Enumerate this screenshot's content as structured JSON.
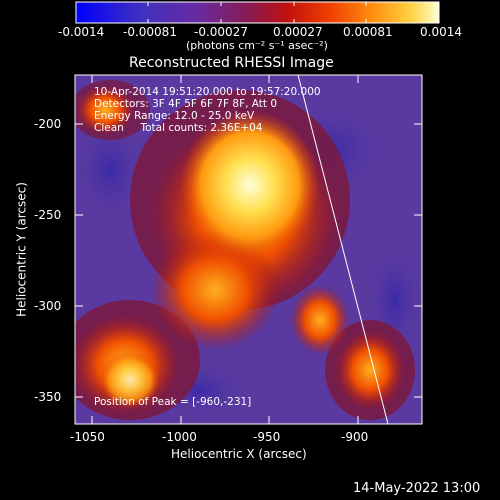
{
  "colorbar": {
    "ticks": [
      "-0.0014",
      "-0.00081",
      "-0.00027",
      "0.00027",
      "0.00081",
      "0.0014"
    ],
    "units": "(photons cm⁻² s⁻¹ asec⁻²)"
  },
  "title": "Reconstructed RHESSI Image",
  "info": {
    "time_range": "10-Apr-2014 19:51:20.000 to 19:57:20.000",
    "detectors": "Detectors: 3F 4F 5F 6F 7F 8F, Att 0",
    "energy": "Energy Range: 12.0 - 25.0 keV",
    "clean": "Clean     Total counts: 2.36E+04",
    "peak": "Position of Peak = [-960,-231]"
  },
  "axes": {
    "ylabel": "Heliocentric Y (arcsec)",
    "xlabel": "Heliocentric X (arcsec)",
    "yticks": [
      "-200",
      "-250",
      "-300",
      "-350"
    ],
    "xticks": [
      "-1050",
      "-1000",
      "-950",
      "-900"
    ]
  },
  "footer": {
    "timestamp": "14-May-2022 13:00"
  }
}
